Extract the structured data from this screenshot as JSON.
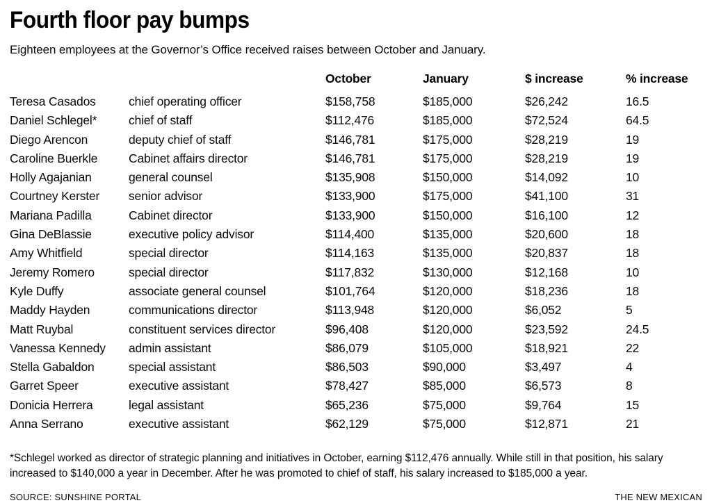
{
  "title": "Fourth floor pay bumps",
  "subtitle": "Eighteen employees at the Governor’s Office received raises between October and January.",
  "chart_data": {
    "type": "table",
    "columns": [
      "",
      "",
      "October",
      "January",
      "$ increase",
      "% increase"
    ],
    "rows": [
      [
        "Teresa Casados",
        "chief operating officer",
        "$158,758",
        "$185,000",
        "$26,242",
        "16.5"
      ],
      [
        "Daniel Schlegel*",
        "chief of staff",
        "$112,476",
        "$185,000",
        "$72,524",
        "64.5"
      ],
      [
        "Diego Arencon",
        "deputy chief of staff",
        "$146,781",
        "$175,000",
        "$28,219",
        "19"
      ],
      [
        "Caroline Buerkle",
        "Cabinet affairs director",
        "$146,781",
        "$175,000",
        "$28,219",
        "19"
      ],
      [
        "Holly Agajanian",
        "general counsel",
        "$135,908",
        "$150,000",
        "$14,092",
        "10"
      ],
      [
        "Courtney Kerster",
        "senior advisor",
        "$133,900",
        "$175,000",
        "$41,100",
        "31"
      ],
      [
        "Mariana Padilla",
        "Cabinet director",
        "$133,900",
        "$150,000",
        "$16,100",
        "12"
      ],
      [
        "Gina DeBlassie",
        "executive policy advisor",
        "$114,400",
        "$135,000",
        "$20,600",
        "18"
      ],
      [
        "Amy Whitfield",
        "special director",
        "$114,163",
        "$135,000",
        "$20,837",
        "18"
      ],
      [
        "Jeremy Romero",
        "special director",
        "$117,832",
        "$130,000",
        "$12,168",
        "10"
      ],
      [
        "Kyle Duffy",
        "associate general counsel",
        "$101,764",
        "$120,000",
        "$18,236",
        "18"
      ],
      [
        "Maddy Hayden",
        "communications director",
        "$113,948",
        "$120,000",
        "$6,052",
        "5"
      ],
      [
        "Matt Ruybal",
        "constituent services director",
        "$96,408",
        "$120,000",
        "$23,592",
        "24.5"
      ],
      [
        "Vanessa Kennedy",
        "admin assistant",
        "$86,079",
        "$105,000",
        "$18,921",
        "22"
      ],
      [
        "Stella Gabaldon",
        "special assistant",
        "$86,503",
        "$90,000",
        "$3,497",
        "4"
      ],
      [
        "Garret Speer",
        "executive assistant",
        "$78,427",
        "$85,000",
        "$6,573",
        "8"
      ],
      [
        "Donicia Herrera",
        "legal assistant",
        "$65,236",
        "$75,000",
        "$9,764",
        "15"
      ],
      [
        "Anna Serrano",
        "executive assistant",
        "$62,129",
        "$75,000",
        "$12,871",
        "21"
      ]
    ]
  },
  "footnote": "*Schlegel worked as director of strategic planning and initiatives in October, earning $112,476 annually. While still in that position, his salary increased to $140,000 a year in December. After he was promoted to chief of staff, his salary increased to $185,000 a year.",
  "source": "SOURCE: SUNSHINE PORTAL",
  "credit": "THE NEW MEXICAN",
  "colors": {
    "text": "#000000",
    "background": "#ffffff"
  }
}
